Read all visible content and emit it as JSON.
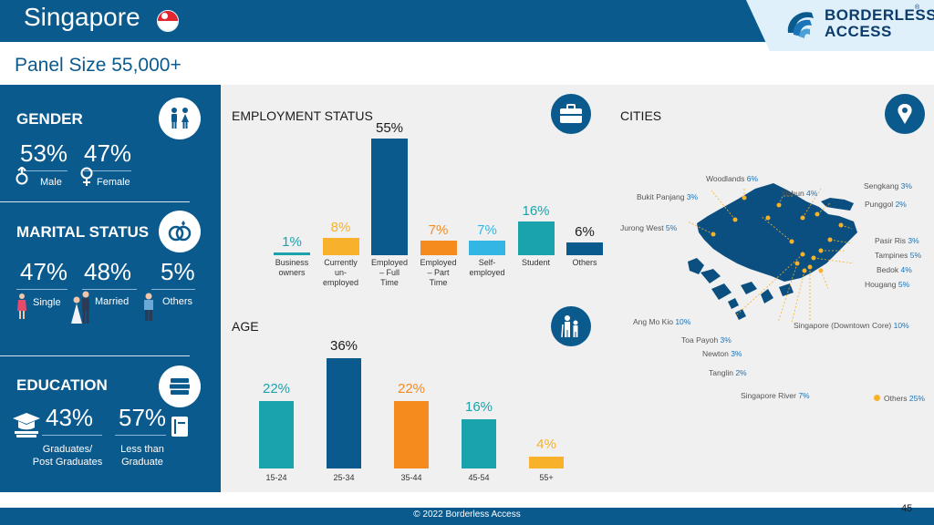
{
  "header": {
    "title": "Singapore",
    "logo_line1": "BORDERLESS",
    "logo_line2": "ACCESS",
    "logo_reg": "®"
  },
  "panel_size": "Panel Size 55,000+",
  "gender": {
    "title": "GENDER",
    "male_pct": "53%",
    "female_pct": "47%",
    "male_label": "Male",
    "female_label": "Female"
  },
  "marital": {
    "title": "MARITAL STATUS",
    "single_pct": "47%",
    "married_pct": "48%",
    "others_pct": "5%",
    "single_label": "Single",
    "married_label": "Married",
    "others_label": "Others"
  },
  "education": {
    "title": "EDUCATION",
    "grad_pct": "43%",
    "less_pct": "57%",
    "grad_label_1": "Graduates/",
    "grad_label_2": "Post Graduates",
    "less_label_1": "Less than",
    "less_label_2": "Graduate"
  },
  "employment": {
    "title": "EMPLOYMENT STATUS",
    "bars": [
      {
        "value": 1,
        "label": "1%",
        "lines": [
          "Business",
          "owners"
        ],
        "color": "#1aa3ad"
      },
      {
        "value": 8,
        "label": "8%",
        "lines": [
          "Currently",
          "un-",
          "employed"
        ],
        "color": "#f7b12a"
      },
      {
        "value": 55,
        "label": "55%",
        "lines": [
          "Employed",
          "– Full",
          "Time"
        ],
        "color": "#0b5a8e"
      },
      {
        "value": 7,
        "label": "7%",
        "lines": [
          "Employed",
          "– Part",
          "Time"
        ],
        "color": "#f58a1f"
      },
      {
        "value": 7,
        "label": "7%",
        "lines": [
          "Self-",
          "employed"
        ],
        "color": "#34b6e5"
      },
      {
        "value": 16,
        "label": "16%",
        "lines": [
          "Student"
        ],
        "color": "#1aa3ad"
      },
      {
        "value": 6,
        "label": "6%",
        "lines": [
          "Others"
        ],
        "color": "#0b5a8e"
      }
    ]
  },
  "age": {
    "title": "AGE",
    "bars": [
      {
        "value": 22,
        "label": "22%",
        "cat": "15-24",
        "color": "#1aa3ad"
      },
      {
        "value": 36,
        "label": "36%",
        "cat": "25-34",
        "color": "#0b5a8e"
      },
      {
        "value": 22,
        "label": "22%",
        "cat": "35-44",
        "color": "#f58a1f"
      },
      {
        "value": 16,
        "label": "16%",
        "cat": "45-54",
        "color": "#1aa3ad"
      },
      {
        "value": 4,
        "label": "4%",
        "cat": "55+",
        "color": "#f7b12a"
      }
    ]
  },
  "cities": {
    "title": "CITIES",
    "items": [
      {
        "name": "Woodlands",
        "pct": "6%"
      },
      {
        "name": "Sengkang",
        "pct": "3%"
      },
      {
        "name": "Bukit Panjang",
        "pct": "3%"
      },
      {
        "name": "Yishun",
        "pct": "4%"
      },
      {
        "name": "Punggol",
        "pct": "2%"
      },
      {
        "name": "Jurong West",
        "pct": "5%"
      },
      {
        "name": "Pasir Ris",
        "pct": "3%"
      },
      {
        "name": "Tampines",
        "pct": "5%"
      },
      {
        "name": "Bedok",
        "pct": "4%"
      },
      {
        "name": "Hougang",
        "pct": "5%"
      },
      {
        "name": "Ang Mo Kio",
        "pct": "10%"
      },
      {
        "name": "Singapore (Downtown Core)",
        "pct": "10%"
      },
      {
        "name": "Toa Payoh",
        "pct": "3%"
      },
      {
        "name": "Newton",
        "pct": "3%"
      },
      {
        "name": "Tanglin",
        "pct": "2%"
      },
      {
        "name": "Singapore River",
        "pct": "7%"
      },
      {
        "name": "Others",
        "pct": "25%"
      }
    ]
  },
  "footer": {
    "copyright": "© 2022 Borderless Access",
    "page": "45"
  },
  "colors": {
    "primary": "#0b5a8e",
    "teal": "#1aa3ad",
    "orange": "#f58a1f",
    "yellow": "#f7b12a",
    "sky": "#34b6e5"
  }
}
